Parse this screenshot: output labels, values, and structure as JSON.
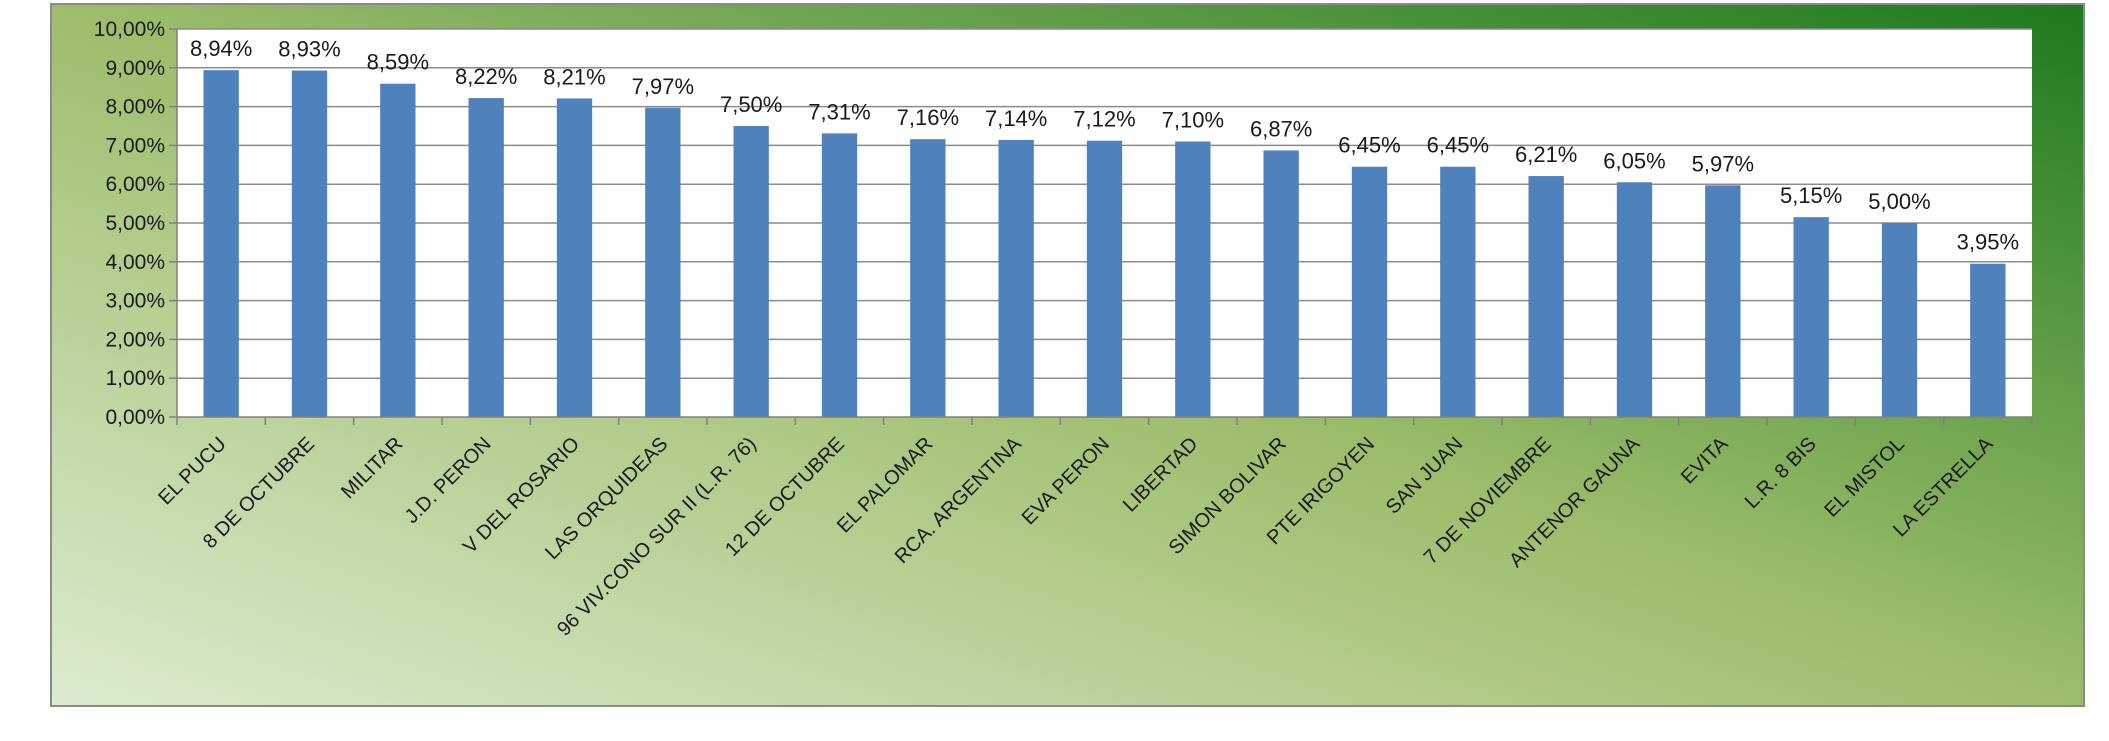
{
  "chart_data": {
    "type": "bar",
    "title": "",
    "xlabel": "",
    "ylabel": "",
    "ylim": [
      0,
      10
    ],
    "y_tick_step": 1,
    "y_tick_labels": [
      "0,00%",
      "1,00%",
      "2,00%",
      "3,00%",
      "4,00%",
      "5,00%",
      "6,00%",
      "7,00%",
      "8,00%",
      "9,00%",
      "10,00%"
    ],
    "grid": true,
    "legend": "none",
    "categories": [
      "EL PUCU",
      "8 DE OCTUBRE",
      "MILITAR",
      "J.D. PERON",
      "V DEL ROSARIO",
      "LAS ORQUIDEAS",
      "96 VIV.CONO SUR II (L.R. 76)",
      "12 DE OCTUBRE",
      "EL PALOMAR",
      "RCA. ARGENTINA",
      "EVA PERON",
      "LIBERTAD",
      "SIMON BOLIVAR",
      "PTE IRIGOYEN",
      "SAN JUAN",
      "7 DE NOVIEMBRE",
      "ANTENOR GAUNA",
      "EVITA",
      "L.R. 8 BIS",
      "EL MISTOL",
      "LA ESTRELLA"
    ],
    "values": [
      8.94,
      8.93,
      8.59,
      8.22,
      8.21,
      7.97,
      7.5,
      7.31,
      7.16,
      7.14,
      7.12,
      7.1,
      6.87,
      6.45,
      6.45,
      6.21,
      6.05,
      5.97,
      5.15,
      5.0,
      3.95
    ],
    "data_labels": [
      "8,94%",
      "8,93%",
      "8,59%",
      "8,22%",
      "8,21%",
      "7,97%",
      "7,50%",
      "7,31%",
      "7,16%",
      "7,14%",
      "7,12%",
      "7,10%",
      "6,87%",
      "6,45%",
      "6,45%",
      "6,21%",
      "6,05%",
      "5,97%",
      "5,15%",
      "5,00%",
      "3,95%"
    ],
    "colors": {
      "bar": "#4f81bd",
      "gridline": "#8c8c8c",
      "plot_background": "#ffffff",
      "background_light": "#dcebd0",
      "background_mid": "#9dbd6c",
      "background_dark": "#1d7a1d"
    }
  }
}
